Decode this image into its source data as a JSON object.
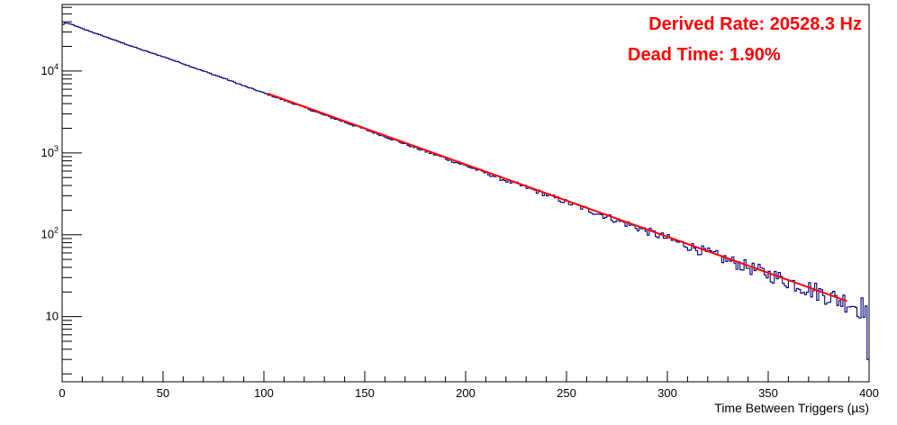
{
  "chart_data": {
    "type": "line",
    "xlabel": "Time Between Triggers (µs)",
    "ylabel": "",
    "xlim": [
      0,
      400
    ],
    "ylim": [
      1.6,
      65000
    ],
    "y_scale": "log",
    "grid": false,
    "legend": "none",
    "x_ticks": [
      0,
      50,
      100,
      150,
      200,
      250,
      300,
      350,
      400
    ],
    "x_tick_labels": [
      "0",
      "50",
      "100",
      "150",
      "200",
      "250",
      "300",
      "350",
      "400"
    ],
    "y_ticks": [
      10,
      100,
      1000,
      10000
    ],
    "y_tick_labels": [
      {
        "base": "10",
        "exp": ""
      },
      {
        "base": "10",
        "exp": "2"
      },
      {
        "base": "10",
        "exp": "3"
      },
      {
        "base": "10",
        "exp": "4"
      }
    ],
    "annotations": [
      {
        "text": "Derived Rate: 20528.3 Hz",
        "color": "#ff0000"
      },
      {
        "text": "Dead Time: 1.90%",
        "color": "#ff0000"
      }
    ],
    "series": [
      {
        "kind": "histogram",
        "color": "#000080",
        "bin_width": 1,
        "x": [
          0,
          1,
          2,
          3,
          4,
          5,
          10,
          20,
          30,
          40,
          50,
          60,
          70,
          80,
          90,
          100,
          110,
          120,
          130,
          140,
          150,
          160,
          170,
          180,
          190,
          200,
          210,
          220,
          230,
          240,
          250,
          260,
          270,
          280,
          290,
          300,
          310,
          320,
          330,
          340,
          350,
          360,
          370,
          380,
          385,
          390,
          395,
          398,
          399,
          400
        ],
        "values": [
          35000,
          39000,
          38500,
          38000,
          37500,
          37000,
          33000,
          27000,
          22000,
          18000,
          15000,
          12300,
          10000,
          8200,
          6600,
          5400,
          4400,
          3600,
          2900,
          2380,
          1950,
          1590,
          1290,
          1050,
          860,
          700,
          570,
          460,
          380,
          310,
          250,
          205,
          167,
          136,
          111,
          90,
          74,
          60,
          49,
          40,
          33,
          27,
          22,
          18,
          16,
          15,
          13,
          13,
          14,
          3
        ]
      },
      {
        "kind": "fit",
        "color": "#ff0000",
        "x": [
          102,
          389
        ],
        "values": [
          5300,
          15.5
        ]
      }
    ]
  }
}
